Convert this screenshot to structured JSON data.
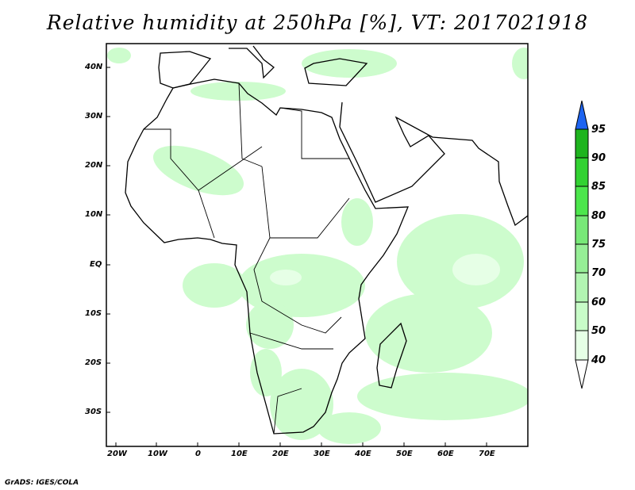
{
  "title": "Relative humidity at 250hPa [%], VT: 2017021918",
  "footer": "GrADS: IGES/COLA",
  "map": {
    "lat_labels": [
      "40N",
      "30N",
      "20N",
      "10N",
      "EQ",
      "10S",
      "20S",
      "30S"
    ],
    "lon_labels": [
      "20W",
      "10W",
      "0",
      "10E",
      "20E",
      "30E",
      "40E",
      "50E",
      "60E",
      "70E"
    ]
  },
  "colorbar": {
    "levels": [
      "40",
      "50",
      "60",
      "70",
      "75",
      "80",
      "85",
      "90",
      "95"
    ],
    "colors": [
      "#e6ffe6",
      "#c8fcc8",
      "#b2f5b2",
      "#96ee96",
      "#78e878",
      "#4ce64c",
      "#32d232",
      "#1eb41e"
    ],
    "over_color": "#1e64f0",
    "under_color": "#ffffff"
  }
}
